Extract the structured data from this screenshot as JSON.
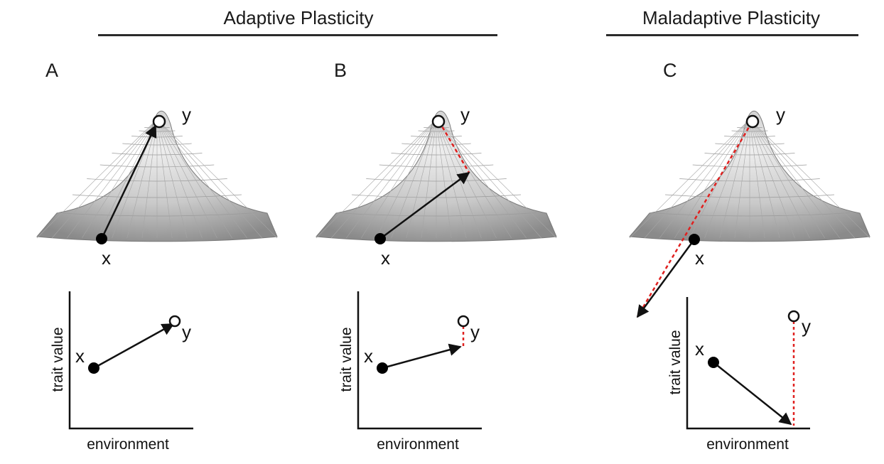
{
  "headers": {
    "adaptive": "Adaptive Plasticity",
    "maladaptive": "Maladaptive Plasticity"
  },
  "panels": [
    {
      "letter": "A",
      "start_label": "x",
      "target_label": "y",
      "axis": {
        "xlabel": "environment",
        "ylabel": "trait value"
      }
    },
    {
      "letter": "B",
      "start_label": "x",
      "target_label": "y",
      "axis": {
        "xlabel": "environment",
        "ylabel": "trait value"
      }
    },
    {
      "letter": "C",
      "start_label": "x",
      "target_label": "y",
      "axis": {
        "xlabel": "environment",
        "ylabel": "trait value"
      }
    }
  ],
  "colors": {
    "arrow": "#111111",
    "gap": "#e0201f",
    "surface_light": "#eeeeee",
    "surface_dark": "#8a8a8a"
  }
}
